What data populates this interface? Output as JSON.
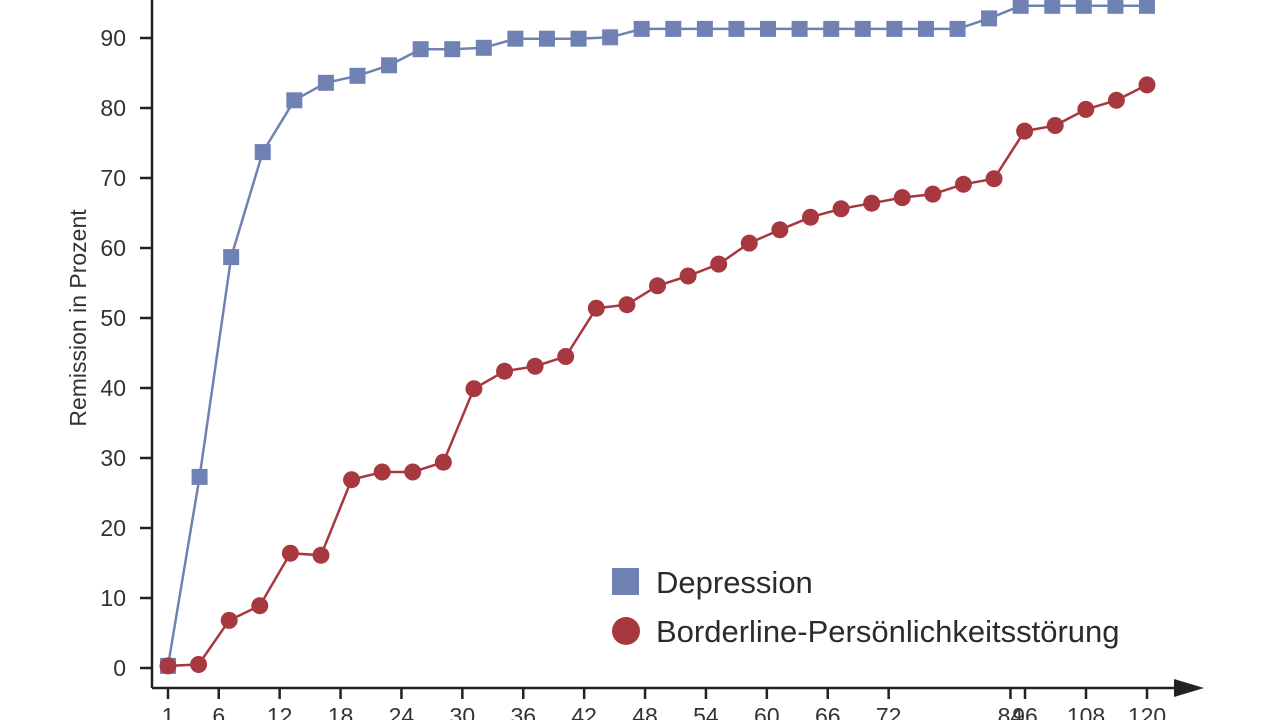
{
  "chart_data": {
    "type": "line",
    "title": "",
    "ylabel": "Remission in Prozent",
    "xlabel": "",
    "x_ticks": [
      1,
      6,
      12,
      18,
      24,
      30,
      36,
      42,
      48,
      54,
      60,
      66,
      72,
      84,
      96,
      108,
      120
    ],
    "y_ticks": [
      0,
      10,
      20,
      30,
      40,
      50,
      60,
      70,
      80,
      90
    ],
    "ylim": [
      0,
      95
    ],
    "legend_position": "bottom-right",
    "grid": false,
    "series": [
      {
        "name": "Depression",
        "color": "#7082b4",
        "marker": "square",
        "values": [
          0.3,
          27.3,
          58.7,
          73.7,
          81.1,
          83.6,
          84.6,
          86.1,
          88.4,
          88.4,
          88.6,
          89.9,
          89.9,
          89.9,
          90.1,
          91.3,
          91.3,
          91.3,
          91.3,
          91.3,
          91.3,
          91.3,
          91.3,
          91.3,
          91.3,
          91.3,
          92.8,
          94.6,
          94.6,
          94.6,
          94.6,
          94.6
        ]
      },
      {
        "name": "Borderline-Persönlichkeitsstörung",
        "color": "#a8383f",
        "marker": "circle",
        "values": [
          0.3,
          0.5,
          6.8,
          8.9,
          16.4,
          16.1,
          26.9,
          28.0,
          28.0,
          29.4,
          39.9,
          42.4,
          43.1,
          44.5,
          51.4,
          51.9,
          54.6,
          56.0,
          57.7,
          60.7,
          62.6,
          64.4,
          65.6,
          66.4,
          67.2,
          67.7,
          69.1,
          69.9,
          76.7,
          77.5,
          79.8,
          81.1,
          83.3
        ]
      }
    ]
  }
}
